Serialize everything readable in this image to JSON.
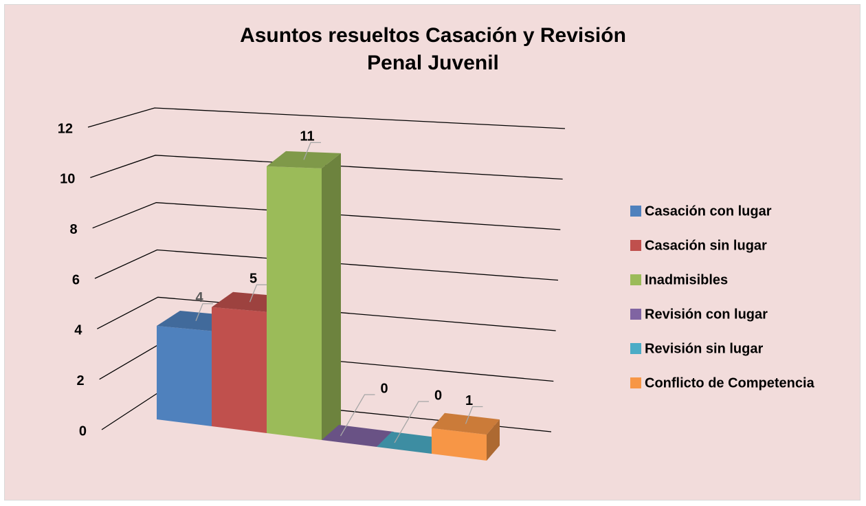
{
  "chart_data": {
    "type": "bar3d",
    "title": "Asuntos resueltos Casación y Revisión Penal Juvenil",
    "series": [
      {
        "name": "Casación con lugar",
        "color": "#4f81bd",
        "values": [
          4
        ]
      },
      {
        "name": "Casación sin lugar",
        "color": "#c0504d",
        "values": [
          5
        ]
      },
      {
        "name": "Inadmisibles",
        "color": "#9bbb59",
        "values": [
          11
        ]
      },
      {
        "name": "Revisión con lugar",
        "color": "#8064a2",
        "values": [
          0
        ]
      },
      {
        "name": "Revisión sin lugar",
        "color": "#4bacc6",
        "values": [
          0
        ]
      },
      {
        "name": "Conflicto de Competencia",
        "color": "#f79646",
        "values": [
          1
        ]
      }
    ],
    "ylim": [
      0,
      12
    ],
    "yticks": [
      0,
      2,
      4,
      6,
      8,
      10,
      12
    ],
    "grid": true,
    "legend": "right"
  }
}
